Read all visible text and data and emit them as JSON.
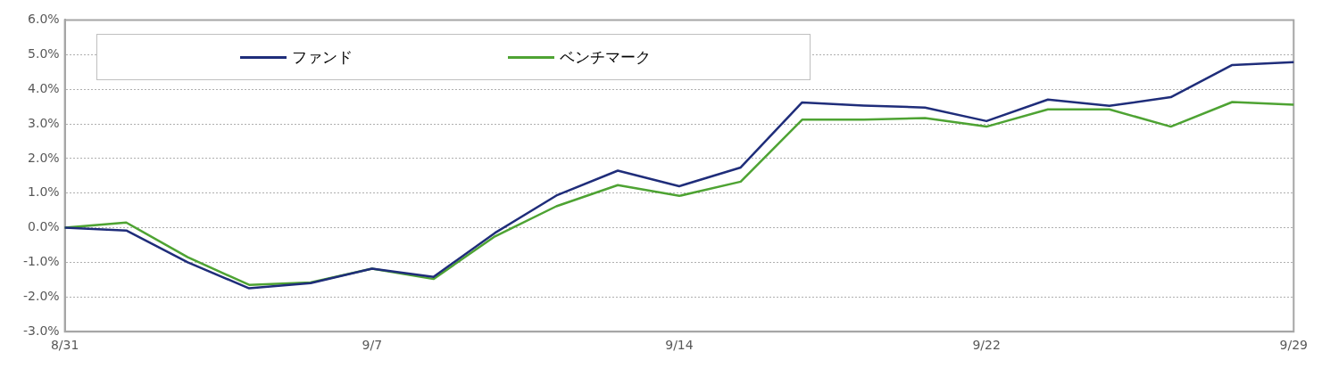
{
  "chart_data": {
    "type": "line",
    "categories": [
      "8/31",
      null,
      null,
      null,
      null,
      "9/7",
      null,
      null,
      null,
      null,
      "9/14",
      null,
      null,
      null,
      null,
      "9/22",
      null,
      null,
      null,
      null,
      "9/29"
    ],
    "series": [
      {
        "name": "ファンド",
        "color": "#1f2d7a",
        "values": [
          0,
          -0.08,
          -1.0,
          -1.75,
          -1.6,
          -1.18,
          -1.42,
          -0.15,
          0.93,
          1.65,
          1.2,
          1.74,
          3.62,
          3.53,
          3.47,
          3.08,
          3.7,
          3.52,
          3.77,
          4.7,
          4.78
        ]
      },
      {
        "name": "ベンチマーク",
        "color": "#4ea333",
        "values": [
          0,
          0.15,
          -0.85,
          -1.65,
          -1.58,
          -1.18,
          -1.48,
          -0.25,
          0.62,
          1.23,
          0.92,
          1.33,
          3.12,
          3.12,
          3.17,
          2.92,
          3.42,
          3.42,
          2.92,
          3.63,
          3.55
        ]
      }
    ],
    "ylim": [
      -3,
      6
    ],
    "yticks": [
      {
        "value": -3,
        "label": "-3.0%"
      },
      {
        "value": -2,
        "label": "-2.0%"
      },
      {
        "value": -1,
        "label": "-1.0%"
      },
      {
        "value": 0,
        "label": "0.0%"
      },
      {
        "value": 1,
        "label": "1.0%"
      },
      {
        "value": 2,
        "label": "2.0%"
      },
      {
        "value": 3,
        "label": "3.0%"
      },
      {
        "value": 4,
        "label": "4.0%"
      },
      {
        "value": 5,
        "label": "5.0%"
      },
      {
        "value": 6,
        "label": "6.0%"
      }
    ],
    "grid": "y",
    "legend": "top left",
    "marker": "none",
    "line_style": "solid"
  }
}
